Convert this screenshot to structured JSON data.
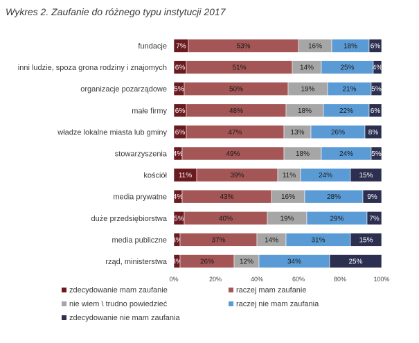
{
  "chart_data": {
    "type": "bar",
    "orientation": "horizontal",
    "stacked": true,
    "title": "Wykres 2. Zaufanie do różnego typu instytucji 2017",
    "categories": [
      "fundacje",
      "inni ludzie, spoza grona rodziny i znajomych",
      "organizacje pozarządowe",
      "małe firmy",
      "władze lokalne miasta lub gminy",
      "stowarzyszenia",
      "kościół",
      "media prywatne",
      "duże przedsiębiorstwa",
      "media publiczne",
      "rząd, ministerstwa"
    ],
    "series": [
      {
        "name": "zdecydowanie mam zaufanie",
        "color": "#6b1a1f",
        "label_color": "#ffffff",
        "values": [
          7,
          6,
          5,
          6,
          6,
          4,
          11,
          4,
          5,
          3,
          3
        ]
      },
      {
        "name": "raczej mam zaufanie",
        "color": "#a45555",
        "label_color": "#1a1a1a",
        "values": [
          53,
          51,
          50,
          48,
          47,
          49,
          39,
          43,
          40,
          37,
          26
        ]
      },
      {
        "name": "nie wiem \\ trudno powiedzieć",
        "color": "#a6a6a6",
        "label_color": "#1a1a1a",
        "values": [
          16,
          14,
          19,
          18,
          13,
          18,
          11,
          16,
          19,
          14,
          12
        ]
      },
      {
        "name": "raczej nie mam zaufania",
        "color": "#5b9bd5",
        "label_color": "#1a1a1a",
        "values": [
          18,
          25,
          21,
          22,
          26,
          24,
          24,
          28,
          29,
          31,
          34
        ]
      },
      {
        "name": "zdecydowanie nie mam zaufania",
        "color": "#2c2f4f",
        "label_color": "#ffffff",
        "values": [
          6,
          4,
          5,
          6,
          8,
          5,
          15,
          9,
          7,
          15,
          25
        ]
      }
    ],
    "value_suffix": "%",
    "xlim": [
      0,
      100
    ],
    "xticks": [
      "0%",
      "20%",
      "40%",
      "60%",
      "80%",
      "100%"
    ],
    "xtick_values": [
      0,
      20,
      40,
      60,
      80,
      100
    ],
    "legend_position": "bottom",
    "grid": false
  }
}
